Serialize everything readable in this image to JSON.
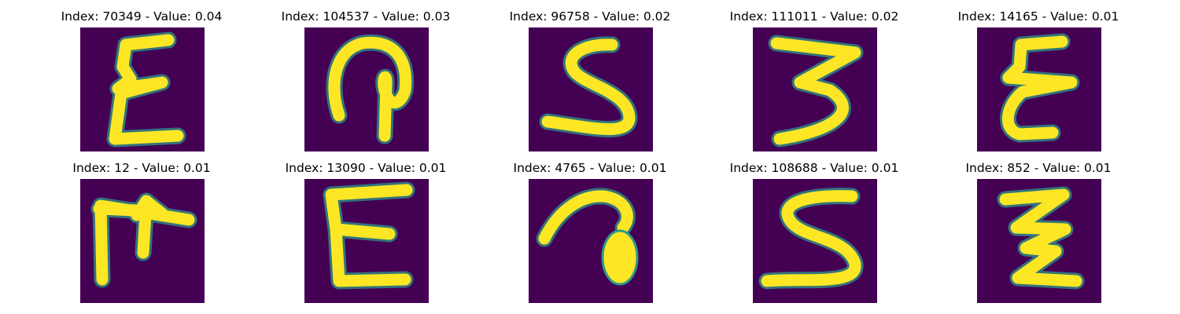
{
  "figure": {
    "panels": [
      {
        "title": "Index: 70349 - Value: 0.04",
        "image": "handwritten-character-sample"
      },
      {
        "title": "Index: 104537 - Value: 0.03",
        "image": "handwritten-character-sample"
      },
      {
        "title": "Index: 96758 - Value: 0.02",
        "image": "handwritten-character-sample"
      },
      {
        "title": "Index: 111011 - Value: 0.02",
        "image": "handwritten-character-sample"
      },
      {
        "title": "Index: 14165 - Value: 0.01",
        "image": "handwritten-character-sample"
      },
      {
        "title": "Index: 12 - Value: 0.01",
        "image": "handwritten-character-sample"
      },
      {
        "title": "Index: 13090 - Value: 0.01",
        "image": "handwritten-character-sample"
      },
      {
        "title": "Index: 4765 - Value: 0.01",
        "image": "handwritten-character-sample"
      },
      {
        "title": "Index: 108688 - Value: 0.01",
        "image": "handwritten-character-sample"
      },
      {
        "title": "Index: 852 - Value: 0.01",
        "image": "handwritten-character-sample"
      }
    ],
    "colors": {
      "background": "#440154",
      "stroke": "#fde725",
      "edge": "#2e9a8a"
    }
  }
}
